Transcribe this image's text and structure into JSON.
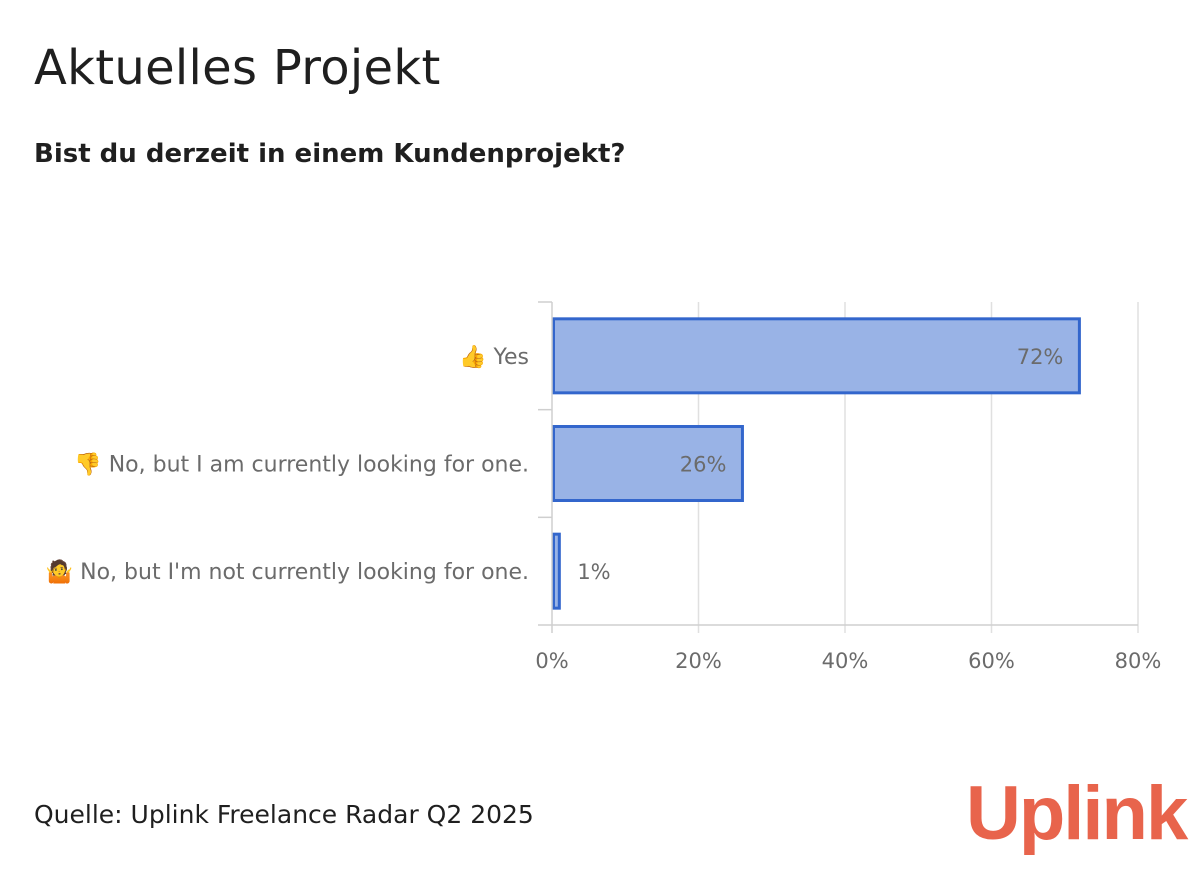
{
  "header": {
    "title": "Aktuelles Projekt",
    "subtitle": "Bist du derzeit in einem Kundenprojekt?"
  },
  "footer": {
    "source": "Quelle: Uplink Freelance Radar Q2 2025",
    "brand": "Uplink"
  },
  "colors": {
    "bar_fill": "#99b3e6",
    "bar_stroke": "#3366cc",
    "grid": "#e0e0e0",
    "axis": "#cfcfcf",
    "label": "#6b6b6b",
    "brand": "#e8644c"
  },
  "chart_data": {
    "type": "bar",
    "orientation": "horizontal",
    "title": "Aktuelles Projekt",
    "subtitle": "Bist du derzeit in einem Kundenprojekt?",
    "categories": [
      "👍 Yes",
      "👎 No, but I am currently looking for one.",
      "🤷 No, but I'm not currently looking for one."
    ],
    "values": [
      72,
      26,
      1
    ],
    "data_labels": [
      "72%",
      "26%",
      "1%"
    ],
    "xlim": [
      0,
      80
    ],
    "xticks": [
      0,
      20,
      40,
      60,
      80
    ],
    "xtick_labels": [
      "0%",
      "20%",
      "40%",
      "60%",
      "80%"
    ],
    "xlabel": "",
    "ylabel": "",
    "grid": true,
    "legend": "none"
  }
}
